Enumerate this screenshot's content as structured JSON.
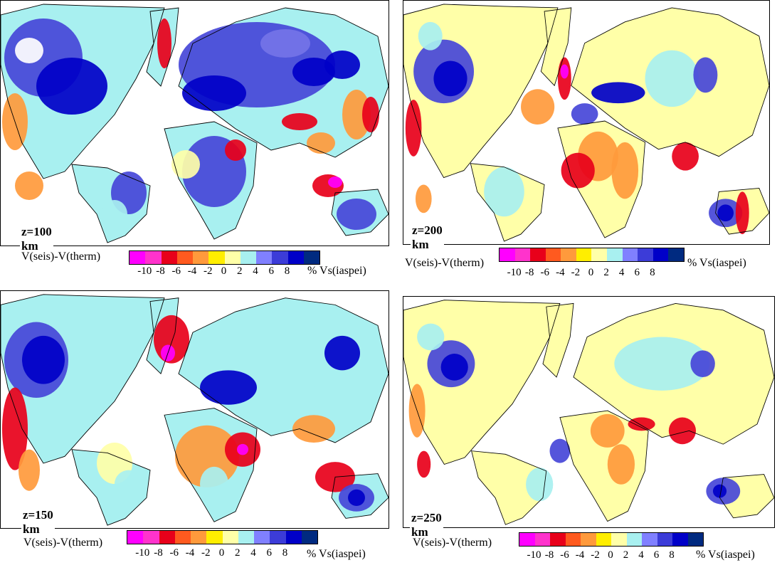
{
  "panels": [
    {
      "id": "p100",
      "depth_label": "z=100 km"
    },
    {
      "id": "p200",
      "depth_label": "z=200 km"
    },
    {
      "id": "p150",
      "depth_label": "z=150 km"
    },
    {
      "id": "p250",
      "depth_label": "z=250 km"
    }
  ],
  "colorbar": {
    "title": "V(seis)-V(therm)",
    "unit": "% Vs(iaspei)",
    "ticks": [
      "-10",
      "-8",
      "-6",
      "-4",
      "-2",
      "0",
      "2",
      "4",
      "6",
      "8"
    ],
    "colors": [
      "#ff00ff",
      "#ff33cc",
      "#e8001a",
      "#ff5a1f",
      "#ff9a3c",
      "#ffee00",
      "#ffffa8",
      "#a8f0f0",
      "#8080ff",
      "#3c3cd8",
      "#0000c8",
      "#002a80"
    ]
  },
  "map_colors": {
    "strong_fast": "#0000c8",
    "fast": "#4646d8",
    "mid_fast": "#7474e8",
    "slight_fast": "#a8f0f0",
    "neutral": "#ffffa8",
    "slight_slow": "#ffee00",
    "slow": "#ff9a3c",
    "strong_slow": "#e8001a",
    "very_slow": "#ff00ff",
    "coast": "#000000",
    "blank": "#ffffff"
  }
}
